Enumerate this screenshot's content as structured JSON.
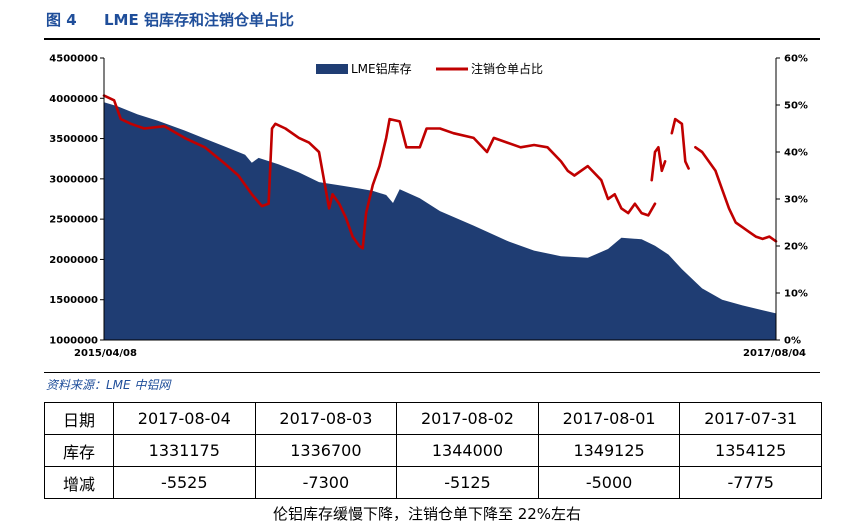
{
  "figure": {
    "number": "图 4",
    "title": "LME 铝库存和注销仓单占比",
    "source": "资料来源：LME    中铝网",
    "caption": "伦铝库存缓慢下降，注销仓单下降至 22%左右"
  },
  "colors": {
    "area": "#1f3d73",
    "line": "#c00000",
    "title": "#1f4e9a"
  },
  "chart_data": {
    "type": "area",
    "x_start_label": "2015/04/08",
    "x_end_label": "2017/08/04",
    "y_left": {
      "min": 1000000,
      "max": 4500000,
      "ticks": [
        "4500000",
        "4000000",
        "3500000",
        "3000000",
        "2500000",
        "2000000",
        "1500000",
        "1000000"
      ]
    },
    "y_right": {
      "min": 0,
      "max": 60,
      "ticks": [
        "60%",
        "50%",
        "40%",
        "30%",
        "20%",
        "10%",
        "0%"
      ]
    },
    "legend": {
      "position": "top-center"
    },
    "series": [
      {
        "name": "LME铝库存",
        "type": "area",
        "axis": "left",
        "points": [
          [
            0,
            3950000
          ],
          [
            0.02,
            3900000
          ],
          [
            0.05,
            3800000
          ],
          [
            0.08,
            3720000
          ],
          [
            0.12,
            3600000
          ],
          [
            0.15,
            3500000
          ],
          [
            0.18,
            3400000
          ],
          [
            0.21,
            3300000
          ],
          [
            0.22,
            3200000
          ],
          [
            0.23,
            3260000
          ],
          [
            0.26,
            3180000
          ],
          [
            0.29,
            3080000
          ],
          [
            0.32,
            2960000
          ],
          [
            0.35,
            2920000
          ],
          [
            0.38,
            2880000
          ],
          [
            0.4,
            2850000
          ],
          [
            0.42,
            2800000
          ],
          [
            0.43,
            2700000
          ],
          [
            0.44,
            2870000
          ],
          [
            0.47,
            2760000
          ],
          [
            0.5,
            2600000
          ],
          [
            0.55,
            2420000
          ],
          [
            0.6,
            2230000
          ],
          [
            0.64,
            2110000
          ],
          [
            0.68,
            2040000
          ],
          [
            0.72,
            2020000
          ],
          [
            0.75,
            2130000
          ],
          [
            0.77,
            2270000
          ],
          [
            0.8,
            2250000
          ],
          [
            0.82,
            2170000
          ],
          [
            0.84,
            2060000
          ],
          [
            0.86,
            1880000
          ],
          [
            0.89,
            1640000
          ],
          [
            0.92,
            1500000
          ],
          [
            0.95,
            1430000
          ],
          [
            0.98,
            1370000
          ],
          [
            1.0,
            1330000
          ]
        ]
      },
      {
        "name": "注销仓单占比",
        "type": "line",
        "axis": "right",
        "segments": [
          [
            [
              0,
              52
            ],
            [
              0.015,
              51
            ],
            [
              0.025,
              47
            ],
            [
              0.04,
              46
            ],
            [
              0.06,
              45
            ],
            [
              0.09,
              45.5
            ],
            [
              0.12,
              43
            ],
            [
              0.15,
              41
            ],
            [
              0.18,
              37.5
            ],
            [
              0.2,
              35
            ],
            [
              0.22,
              31
            ],
            [
              0.235,
              28.5
            ],
            [
              0.245,
              29
            ],
            [
              0.25,
              45
            ],
            [
              0.255,
              46
            ],
            [
              0.27,
              45
            ],
            [
              0.29,
              43
            ],
            [
              0.305,
              42
            ],
            [
              0.32,
              40
            ],
            [
              0.335,
              28
            ],
            [
              0.34,
              31
            ],
            [
              0.35,
              29
            ],
            [
              0.36,
              26
            ],
            [
              0.37,
              22
            ],
            [
              0.38,
              20
            ],
            [
              0.385,
              19.5
            ],
            [
              0.39,
              27
            ],
            [
              0.4,
              33
            ],
            [
              0.41,
              37
            ],
            [
              0.42,
              43
            ],
            [
              0.425,
              47
            ],
            [
              0.44,
              46.5
            ],
            [
              0.45,
              41
            ],
            [
              0.47,
              41
            ],
            [
              0.48,
              45
            ],
            [
              0.5,
              45
            ],
            [
              0.52,
              44
            ],
            [
              0.55,
              43
            ],
            [
              0.57,
              40
            ],
            [
              0.58,
              43
            ],
            [
              0.6,
              42
            ],
            [
              0.62,
              41
            ],
            [
              0.64,
              41.5
            ],
            [
              0.66,
              41
            ],
            [
              0.68,
              38
            ],
            [
              0.69,
              36
            ],
            [
              0.7,
              35
            ],
            [
              0.72,
              37
            ],
            [
              0.74,
              34
            ],
            [
              0.75,
              30
            ],
            [
              0.76,
              31
            ],
            [
              0.77,
              28
            ],
            [
              0.78,
              27
            ],
            [
              0.79,
              29
            ],
            [
              0.8,
              27
            ],
            [
              0.81,
              26.5
            ],
            [
              0.82,
              29
            ]
          ],
          [
            [
              0.815,
              34
            ],
            [
              0.82,
              40
            ],
            [
              0.825,
              41
            ],
            [
              0.83,
              36
            ],
            [
              0.835,
              38
            ]
          ],
          [
            [
              0.845,
              44
            ],
            [
              0.85,
              47
            ],
            [
              0.86,
              46
            ],
            [
              0.865,
              38
            ],
            [
              0.87,
              36.5
            ]
          ],
          [
            [
              0.88,
              41
            ],
            [
              0.89,
              40
            ],
            [
              0.91,
              36
            ],
            [
              0.92,
              32
            ],
            [
              0.93,
              28
            ],
            [
              0.94,
              25
            ],
            [
              0.95,
              24
            ],
            [
              0.96,
              23
            ],
            [
              0.97,
              22
            ],
            [
              0.98,
              21.5
            ],
            [
              0.99,
              22
            ],
            [
              1.0,
              21
            ]
          ]
        ]
      }
    ]
  },
  "table": {
    "header": [
      "日期",
      "2017-08-04",
      "2017-08-03",
      "2017-08-02",
      "2017-08-01",
      "2017-07-31"
    ],
    "rows": [
      [
        "库存",
        "1331175",
        "1336700",
        "1344000",
        "1349125",
        "1354125"
      ],
      [
        "增减",
        "-5525",
        "-7300",
        "-5125",
        "-5000",
        "-7775"
      ]
    ]
  }
}
